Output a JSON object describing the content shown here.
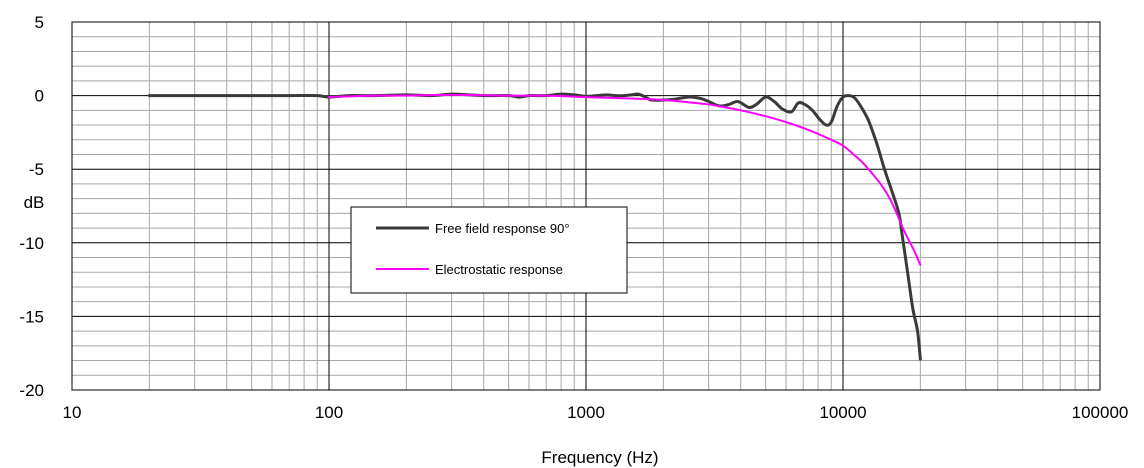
{
  "chart_data": {
    "type": "line",
    "title": "",
    "xlabel": "Frequency (Hz)",
    "ylabel": "dB",
    "xscale": "log",
    "xlim": [
      10,
      100000
    ],
    "ylim": [
      -20,
      5
    ],
    "x_ticks": [
      10,
      100,
      1000,
      10000,
      100000
    ],
    "x_tick_labels": [
      "10",
      "100",
      "1000",
      "10000",
      "100000"
    ],
    "y_ticks": [
      5,
      0,
      -5,
      -10,
      -15,
      -20
    ],
    "y_tick_labels": [
      "5",
      "0",
      "-5",
      "-10",
      "-15",
      "-20"
    ],
    "grid": true,
    "legend_position": "center-left",
    "series": [
      {
        "name": "Free field response 90°",
        "color": "#3a3a3a",
        "points": [
          [
            20,
            0
          ],
          [
            30,
            0
          ],
          [
            50,
            0
          ],
          [
            70,
            0
          ],
          [
            90,
            0
          ],
          [
            100,
            -0.1
          ],
          [
            120,
            0
          ],
          [
            150,
            0
          ],
          [
            200,
            0.05
          ],
          [
            250,
            0
          ],
          [
            300,
            0.1
          ],
          [
            350,
            0.05
          ],
          [
            400,
            0
          ],
          [
            500,
            0
          ],
          [
            550,
            -0.1
          ],
          [
            600,
            0
          ],
          [
            700,
            0
          ],
          [
            800,
            0.1
          ],
          [
            900,
            0.05
          ],
          [
            1000,
            -0.05
          ],
          [
            1100,
            0
          ],
          [
            1200,
            0.05
          ],
          [
            1300,
            0
          ],
          [
            1400,
            0
          ],
          [
            1500,
            0.05
          ],
          [
            1600,
            0.1
          ],
          [
            1700,
            -0.1
          ],
          [
            1800,
            -0.3
          ],
          [
            2000,
            -0.3
          ],
          [
            2200,
            -0.25
          ],
          [
            2500,
            -0.1
          ],
          [
            2800,
            -0.2
          ],
          [
            3000,
            -0.4
          ],
          [
            3300,
            -0.7
          ],
          [
            3600,
            -0.6
          ],
          [
            3900,
            -0.4
          ],
          [
            4300,
            -0.8
          ],
          [
            4600,
            -0.6
          ],
          [
            5000,
            -0.1
          ],
          [
            5400,
            -0.4
          ],
          [
            5800,
            -0.9
          ],
          [
            6300,
            -1.1
          ],
          [
            6700,
            -0.5
          ],
          [
            7100,
            -0.6
          ],
          [
            7600,
            -1.0
          ],
          [
            8100,
            -1.6
          ],
          [
            8600,
            -2.0
          ],
          [
            9000,
            -1.8
          ],
          [
            9500,
            -0.7
          ],
          [
            10000,
            -0.1
          ],
          [
            10500,
            0
          ],
          [
            11000,
            -0.1
          ],
          [
            11500,
            -0.5
          ],
          [
            12500,
            -1.6
          ],
          [
            13500,
            -3.2
          ],
          [
            14500,
            -5.0
          ],
          [
            15500,
            -6.5
          ],
          [
            16500,
            -8.0
          ],
          [
            17000,
            -9.5
          ],
          [
            17500,
            -11.0
          ],
          [
            18000,
            -12.5
          ],
          [
            18700,
            -14.5
          ],
          [
            19500,
            -16.0
          ],
          [
            20000,
            -17.9
          ]
        ]
      },
      {
        "name": "Electrostatic response",
        "color": "#ff00ff",
        "points": [
          [
            100,
            -0.1
          ],
          [
            150,
            0
          ],
          [
            200,
            0
          ],
          [
            300,
            0.05
          ],
          [
            500,
            0
          ],
          [
            700,
            0
          ],
          [
            1000,
            -0.1
          ],
          [
            1500,
            -0.2
          ],
          [
            2000,
            -0.3
          ],
          [
            2500,
            -0.45
          ],
          [
            3000,
            -0.6
          ],
          [
            3500,
            -0.8
          ],
          [
            4000,
            -1.0
          ],
          [
            5000,
            -1.4
          ],
          [
            6000,
            -1.8
          ],
          [
            7000,
            -2.2
          ],
          [
            8000,
            -2.6
          ],
          [
            9000,
            -3.0
          ],
          [
            10000,
            -3.4
          ],
          [
            11000,
            -4.0
          ],
          [
            12000,
            -4.6
          ],
          [
            13000,
            -5.3
          ],
          [
            14000,
            -6.0
          ],
          [
            15000,
            -6.8
          ],
          [
            16000,
            -7.8
          ],
          [
            17000,
            -8.9
          ],
          [
            18000,
            -9.8
          ],
          [
            19000,
            -10.6
          ],
          [
            20000,
            -11.5
          ]
        ]
      }
    ]
  }
}
